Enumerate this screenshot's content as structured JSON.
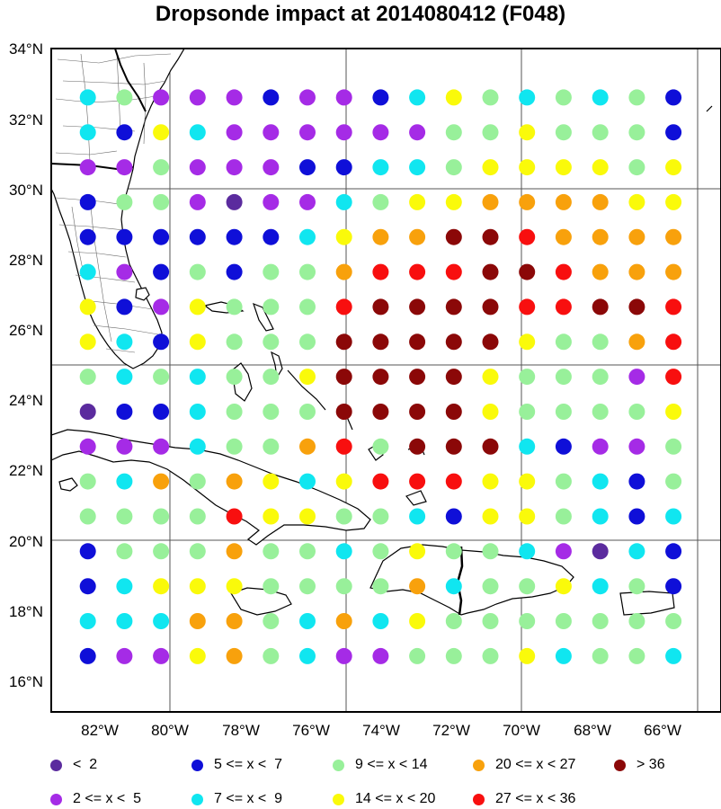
{
  "title": "Dropsonde impact at 2014080412 (F048)",
  "map": {
    "lon_range": [
      -83.0,
      -64.7
    ],
    "lat_range": [
      15.0,
      34.0
    ],
    "gridlines_lon": [
      -80,
      -75,
      -70,
      -65
    ],
    "gridlines_lat": [
      20,
      25,
      30
    ],
    "lat_ticks": [
      {
        "value": 34,
        "label": "34°N"
      },
      {
        "value": 32,
        "label": "32°N"
      },
      {
        "value": 30,
        "label": "30°N"
      },
      {
        "value": 28,
        "label": "28°N"
      },
      {
        "value": 26,
        "label": "26°N"
      },
      {
        "value": 24,
        "label": "24°N"
      },
      {
        "value": 22,
        "label": "22°N"
      },
      {
        "value": 20,
        "label": "20°N"
      },
      {
        "value": 18,
        "label": "18°N"
      },
      {
        "value": 16,
        "label": "16°N"
      }
    ],
    "lon_ticks": [
      {
        "value": -82,
        "label": "82°W"
      },
      {
        "value": -80,
        "label": "80°W"
      },
      {
        "value": -78,
        "label": "78°W"
      },
      {
        "value": -76,
        "label": "76°W"
      },
      {
        "value": -74,
        "label": "74°W"
      },
      {
        "value": -72,
        "label": "72°W"
      },
      {
        "value": -70,
        "label": "70°W"
      },
      {
        "value": -68,
        "label": "68°W"
      },
      {
        "value": -66,
        "label": "66°W"
      }
    ]
  },
  "chart_data": {
    "type": "scatter",
    "grid_lon": [
      -82,
      -81,
      -80,
      -79,
      -78,
      -77,
      -76,
      -75,
      -74,
      -73,
      -72,
      -71,
      -70,
      -69,
      -68,
      -67,
      -66
    ],
    "grid_lat": [
      32.6,
      31.6,
      30.6,
      29.6,
      28.6,
      27.6,
      26.6,
      25.6,
      24.6,
      23.6,
      22.6,
      21.6,
      20.6,
      19.6,
      18.6,
      17.6,
      16.6
    ],
    "categories": [
      {
        "code": "a",
        "label": "<  2",
        "color": "#5b2b9e"
      },
      {
        "code": "b",
        "label": "2 <= x <  5",
        "color": "#a52be6"
      },
      {
        "code": "c",
        "label": "5 <= x <  7",
        "color": "#0f0fd8"
      },
      {
        "code": "d",
        "label": "7 <= x <  9",
        "color": "#10e6f0"
      },
      {
        "code": "e",
        "label": "9 <= x < 14",
        "color": "#98f09a"
      },
      {
        "code": "f",
        "label": "14 <= x < 20",
        "color": "#fafa0a"
      },
      {
        "code": "g",
        "label": "20 <= x < 27",
        "color": "#f8a10c"
      },
      {
        "code": "h",
        "label": "27 <= x < 36",
        "color": "#f80f0f"
      },
      {
        "code": "i",
        "label": "> 36",
        "color": "#8b0808"
      }
    ],
    "rows": [
      "debbbcbbcdfededec",
      "dcfdbbbbbbeefeeec",
      "bbebbbccddeffffef",
      "ceebabbdeffggggff",
      "ccccccdfggiihgggg",
      "dbceceeghhhiihggg",
      "fcbfeeehiiiihhiih",
      "fdcfeeeiiiiifeegh",
      "ededeefiiiifeeebh",
      "accdeeeiiiifeeeef",
      "bbbdeegheiiidcbbe",
      "edgegfdfhhhffedce",
      "eeeehffeedcffedcd",
      "ceeegeedefeedbadc",
      "cdfffeeeegdeefdec",
      "dddggedgdfeeeeeee",
      "cbbfgedbbeeefdeed"
    ]
  },
  "legend": {
    "items": [
      {
        "code": "a",
        "label": "<  2"
      },
      {
        "code": "b",
        "label": "2 <= x <  5"
      },
      {
        "code": "c",
        "label": "5 <= x <  7"
      },
      {
        "code": "d",
        "label": "7 <= x <  9"
      },
      {
        "code": "e",
        "label": "9 <= x < 14"
      },
      {
        "code": "f",
        "label": "14 <= x < 20"
      },
      {
        "code": "g",
        "label": "20 <= x < 27"
      },
      {
        "code": "h",
        "label": "27 <= x < 36"
      },
      {
        "code": "i",
        "label": "> 36"
      }
    ]
  }
}
